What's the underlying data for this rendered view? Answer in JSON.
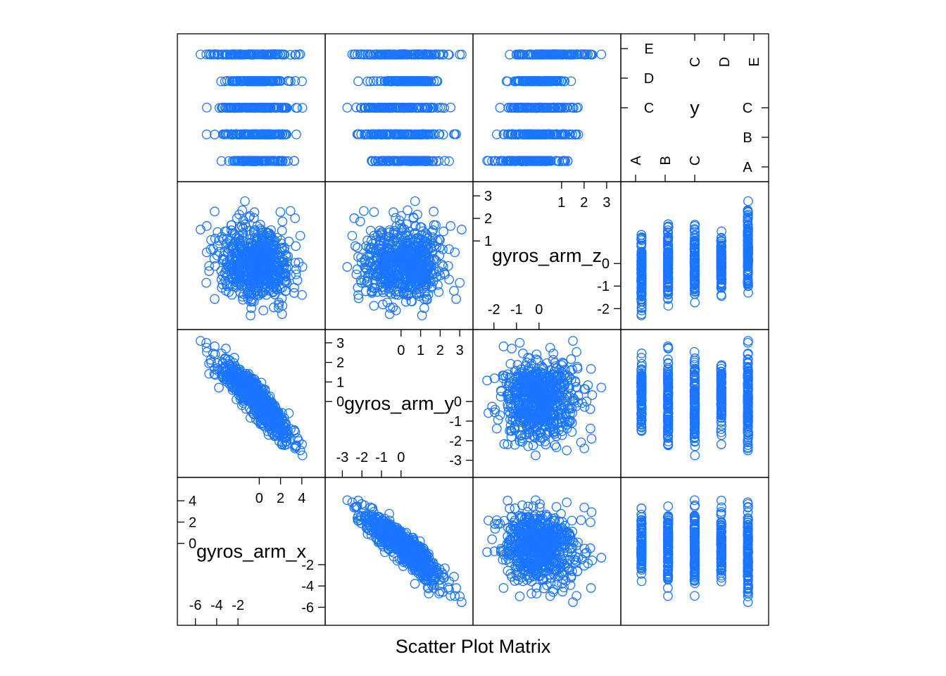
{
  "chart_data": {
    "type": "scatter",
    "title": "",
    "xlabel": "Scatter Plot Matrix",
    "variables": [
      {
        "name": "gyros_arm_x",
        "range": [
          -7,
          5.5
        ],
        "ticks_low": [
          "-6",
          "-4",
          "-2"
        ],
        "ticks_low_values": [
          -6,
          -4,
          -2
        ],
        "ticks_high": [
          "0",
          "2",
          "4"
        ],
        "ticks_high_values": [
          0,
          2,
          4
        ]
      },
      {
        "name": "gyros_arm_y",
        "range": [
          -3.5,
          3.3
        ],
        "ticks_low": [
          "-3",
          "-2",
          "-1",
          "0"
        ],
        "ticks_low_values": [
          -3,
          -2,
          -1,
          0
        ],
        "ticks_high": [
          "0",
          "1",
          "2",
          "3"
        ],
        "ticks_high_values": [
          0,
          1,
          2,
          3
        ]
      },
      {
        "name": "gyros_arm_z",
        "range": [
          -2.6,
          3.3
        ],
        "ticks_low": [
          "-2",
          "-1",
          "0"
        ],
        "ticks_low_values": [
          -2,
          -1,
          0
        ],
        "ticks_high": [
          "1",
          "2",
          "3"
        ],
        "ticks_high_values": [
          1,
          2,
          3
        ]
      },
      {
        "name": "y",
        "levels": [
          "A",
          "B",
          "C",
          "D",
          "E"
        ],
        "ticks_low": [
          "A",
          "B",
          "C"
        ],
        "ticks_high": [
          "C",
          "D",
          "E"
        ]
      }
    ],
    "points": {
      "color": "#1a75ff",
      "symbol": "open-circle",
      "by_class": {
        "A": {
          "x": [
            -4.1,
            3.9
          ],
          "y": [
            -2.0,
            2.7
          ],
          "z": [
            -2.4,
            1.6
          ]
        },
        "B": {
          "x": [
            -5.8,
            4.9
          ],
          "y": [
            -3.4,
            3.3
          ],
          "z": [
            -2.2,
            2.1
          ]
        },
        "C": {
          "x": [
            -5.7,
            5.2
          ],
          "y": [
            -3.0,
            2.9
          ],
          "z": [
            -1.9,
            2.1
          ]
        },
        "D": {
          "x": [
            -5.3,
            5.2
          ],
          "y": [
            -2.2,
            2.6
          ],
          "z": [
            -1.5,
            1.6
          ]
        },
        "E": {
          "x": [
            -6.4,
            5.3
          ],
          "y": [
            -3.3,
            3.1
          ],
          "z": [
            -1.8,
            3.0
          ]
        }
      }
    },
    "grid": false,
    "legend": "none"
  }
}
